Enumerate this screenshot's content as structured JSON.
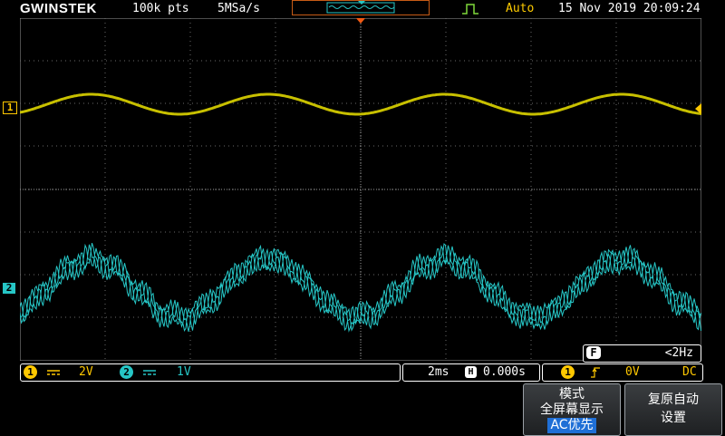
{
  "header": {
    "brand": "GWINSTEK",
    "record_length": "100k pts",
    "sample_rate": "5MSa/s",
    "trigger_mode": "Auto",
    "datetime": "15 Nov 2019 20:09:24"
  },
  "channels": {
    "ch1": {
      "marker": "1",
      "coupling_icon": "dc-coupling-icon",
      "scale": "2V",
      "color": "#ffc800"
    },
    "ch2": {
      "marker": "2",
      "coupling_icon": "dc-coupling-icon",
      "scale": "1V",
      "color": "#26c6c6"
    }
  },
  "frequency": {
    "badge": "F",
    "value": "<2Hz"
  },
  "timebase": {
    "scale": "2ms",
    "badge": "H",
    "position": "0.000s"
  },
  "trigger": {
    "source": "1",
    "slope_icon": "rising-edge-icon",
    "level": "0V",
    "coupling": "DC"
  },
  "softkeys": {
    "mode": {
      "line1": "模式",
      "line2": "全屏幕显示",
      "line3": "AC优先"
    },
    "reset": {
      "line1": "复原自动",
      "line2": "设置"
    }
  }
}
